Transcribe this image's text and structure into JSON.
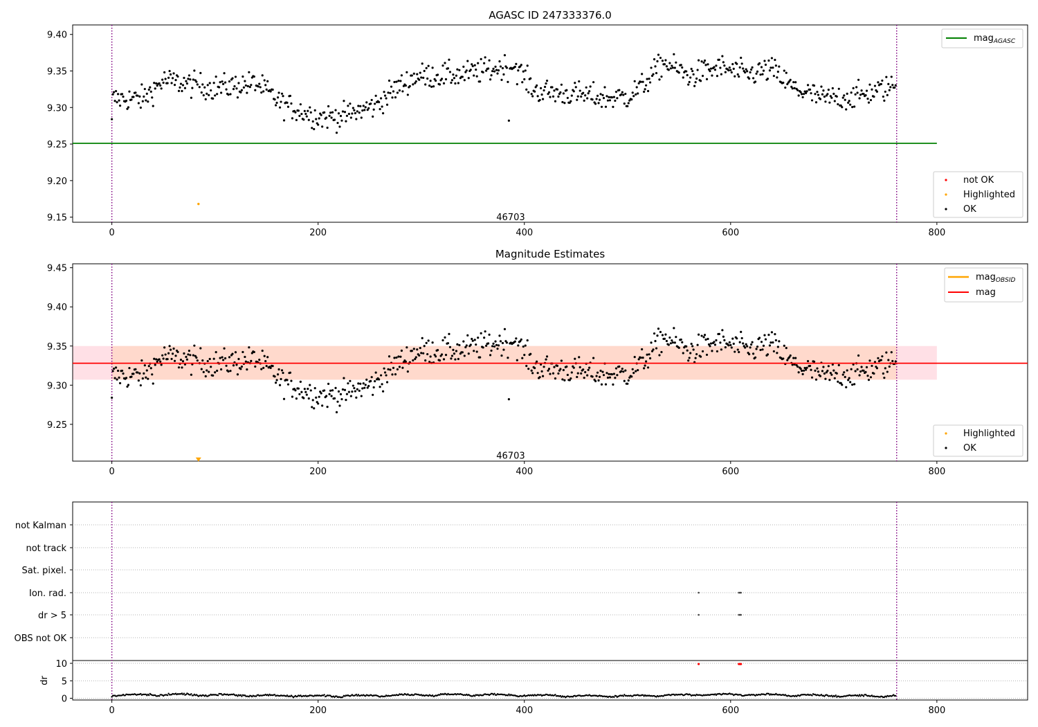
{
  "chart_data": [
    {
      "type": "scatter",
      "title": "AGASC ID 247333376.0",
      "xlim": [
        -38,
        888
      ],
      "ylim": [
        9.143,
        9.413
      ],
      "xticks": [
        0,
        200,
        400,
        600,
        800
      ],
      "yticks": [
        9.15,
        9.2,
        9.25,
        9.3,
        9.35,
        9.4
      ],
      "ytick_labels": [
        "9.15",
        "9.20",
        "9.25",
        "9.30",
        "9.35",
        "9.40"
      ],
      "hlines": [
        {
          "name": "mag_AGASC",
          "label": "mag",
          "sub": "AGASC",
          "y": 9.251,
          "x": [
            -38,
            800
          ],
          "color": "#008000"
        }
      ],
      "vlines": [
        0,
        761
      ],
      "annotation": {
        "text": "46703",
        "x": 380,
        "y": 9.146
      },
      "highlighted_points": [
        {
          "x": 84,
          "y": 9.168
        }
      ],
      "legend_lines": [
        {
          "label": "mag",
          "sub": "AGASC",
          "color": "#008000"
        }
      ],
      "legend_points": [
        {
          "label": "not OK",
          "color": "#ff0000"
        },
        {
          "label": "Highlighted",
          "color": "#ffa500"
        },
        {
          "label": "OK",
          "color": "#000000"
        }
      ],
      "legend_placement": [
        "upper right",
        "lower right"
      ],
      "series_generator": {
        "n": 761,
        "outlier": {
          "x": 385,
          "y": 9.282
        }
      },
      "mag_trend": [
        [
          0,
          9.312
        ],
        [
          30,
          9.312
        ],
        [
          50,
          9.337
        ],
        [
          100,
          9.327
        ],
        [
          140,
          9.333
        ],
        [
          165,
          9.305
        ],
        [
          200,
          9.287
        ],
        [
          225,
          9.288
        ],
        [
          255,
          9.303
        ],
        [
          275,
          9.325
        ],
        [
          295,
          9.343
        ],
        [
          340,
          9.345
        ],
        [
          390,
          9.358
        ],
        [
          410,
          9.323
        ],
        [
          450,
          9.318
        ],
        [
          480,
          9.313
        ],
        [
          500,
          9.315
        ],
        [
          515,
          9.33
        ],
        [
          535,
          9.362
        ],
        [
          560,
          9.343
        ],
        [
          590,
          9.355
        ],
        [
          615,
          9.345
        ],
        [
          640,
          9.352
        ],
        [
          660,
          9.327
        ],
        [
          690,
          9.312
        ],
        [
          720,
          9.315
        ],
        [
          761,
          9.33
        ]
      ]
    },
    {
      "type": "scatter",
      "title": "Magnitude Estimates",
      "xlim": [
        -38,
        888
      ],
      "ylim": [
        9.203,
        9.455
      ],
      "xticks": [
        0,
        200,
        400,
        600,
        800
      ],
      "yticks": [
        9.25,
        9.3,
        9.35,
        9.4,
        9.45
      ],
      "ytick_labels": [
        "9.25",
        "9.30",
        "9.35",
        "9.40",
        "9.45"
      ],
      "mag_line": {
        "y": 9.328,
        "color": "#ff0000"
      },
      "mag_band": {
        "y": [
          9.307,
          9.35
        ],
        "x": [
          -38,
          800
        ],
        "colors": [
          "#ffe0e6",
          "#ffd9cc"
        ]
      },
      "vlines": [
        0,
        761
      ],
      "annotation": {
        "text": "46703",
        "x": 380,
        "y": 9.206
      },
      "highlighted_points": [
        {
          "x": 84,
          "y": 9.205,
          "marker": "triangle-down"
        }
      ],
      "legend_lines": [
        {
          "label": "mag",
          "sub": "OBSID",
          "color": "#ffa500"
        },
        {
          "label": "mag",
          "sub": "",
          "color": "#ff0000"
        }
      ],
      "legend_points": [
        {
          "label": "Highlighted",
          "color": "#ffa500"
        },
        {
          "label": "OK",
          "color": "#000000"
        }
      ],
      "legend_placement": [
        "upper right",
        "lower right"
      ]
    },
    {
      "type": "scatter",
      "title": "",
      "xlim": [
        -38,
        888
      ],
      "xticks": [
        0,
        200,
        400,
        600,
        800
      ],
      "categories": [
        "not Kalman",
        "not track",
        "Sat. pixel.",
        "Ion. rad.",
        "dr > 5",
        "OBS not OK"
      ],
      "flag_points": {
        "Ion. rad.": [
          569,
          608,
          609,
          610
        ],
        "dr > 5": [
          569,
          608,
          609,
          610
        ]
      },
      "dr_panel": {
        "ylabel": "dr",
        "ylim": [
          -0.5,
          10.8
        ],
        "yticks": [
          0,
          5,
          10
        ],
        "ytick_labels": [
          "0",
          "5",
          "10"
        ],
        "red_points": [
          {
            "x": 569,
            "y": 9.8
          },
          {
            "x": 608,
            "y": 9.8
          },
          {
            "x": 609,
            "y": 9.8
          },
          {
            "x": 610,
            "y": 9.8
          }
        ]
      },
      "vlines": [
        0,
        761
      ]
    }
  ]
}
